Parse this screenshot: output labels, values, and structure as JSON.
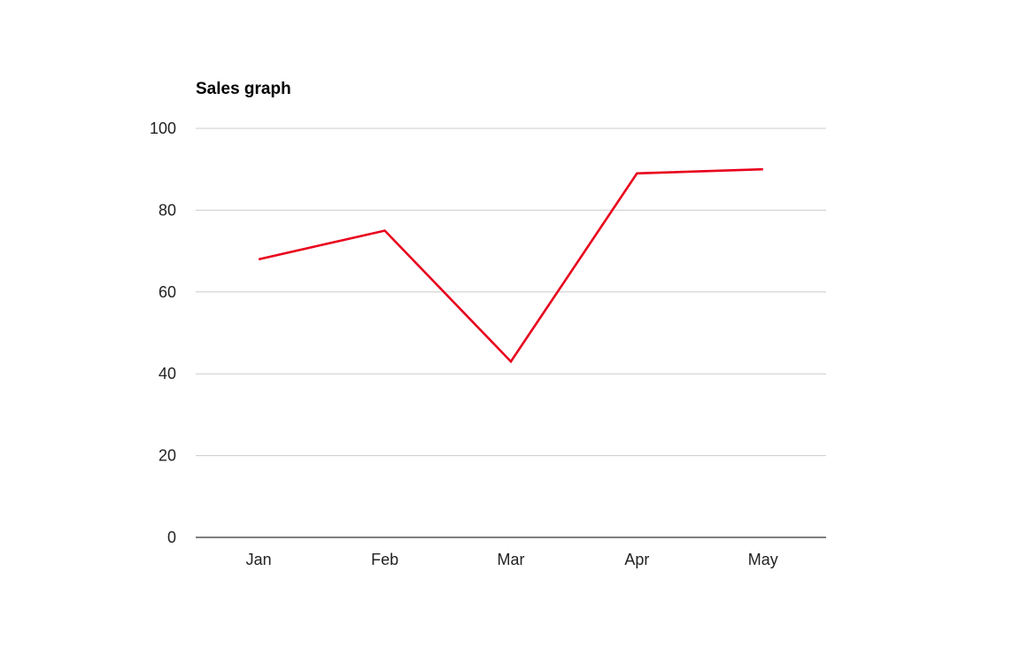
{
  "chart_data": {
    "type": "line",
    "title": "Sales graph",
    "categories": [
      "Jan",
      "Feb",
      "Mar",
      "Apr",
      "May"
    ],
    "series": [
      {
        "values": [
          68,
          75,
          43,
          89,
          90
        ],
        "color": "#e8001c"
      }
    ],
    "ylim": [
      0,
      100
    ],
    "yticks": [
      0,
      20,
      40,
      60,
      80,
      100
    ],
    "ytick_labels": [
      "0",
      "20",
      "40",
      "60",
      "80",
      "100"
    ],
    "grid": true,
    "legend": "none"
  }
}
